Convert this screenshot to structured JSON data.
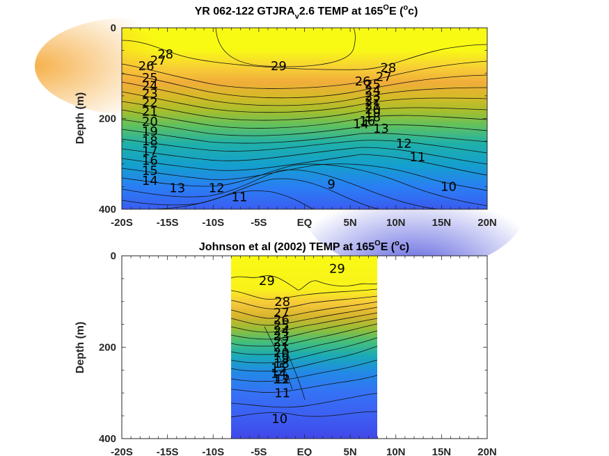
{
  "chart_data": [
    {
      "type": "heatmap",
      "subtype": "filled-contour",
      "title": {
        "pre": "YR 062-122 GTJRA",
        "sub": "v",
        "post": "2.6 TEMP at 165",
        "sup": "O",
        "post2": "E (",
        "sup2": "o",
        "post3": "c)"
      },
      "ylabel": "Depth (m)",
      "xlim": [
        -20,
        20
      ],
      "ylim": [
        0,
        400
      ],
      "y_reversed": true,
      "x_ticks": [
        "-20S",
        "-15S",
        "-10S",
        "-5S",
        "EQ",
        "5N",
        "10N",
        "15N",
        "20N"
      ],
      "y_ticks": [
        "0",
        "200",
        "400"
      ],
      "colormap": "parula",
      "data_extent_lon": [
        -20,
        20
      ],
      "contour_labels": [
        {
          "v": "29",
          "lon": -3.7,
          "d": 84
        },
        {
          "v": "28",
          "lon": -16.1,
          "d": 58
        },
        {
          "v": "27",
          "lon": -16.9,
          "d": 72
        },
        {
          "v": "26",
          "lon": -18.2,
          "d": 84
        },
        {
          "v": "25",
          "lon": -17.8,
          "d": 110
        },
        {
          "v": "24",
          "lon": -17.8,
          "d": 128
        },
        {
          "v": "23",
          "lon": -17.8,
          "d": 145
        },
        {
          "v": "22",
          "lon": -17.8,
          "d": 165
        },
        {
          "v": "21",
          "lon": -17.8,
          "d": 185
        },
        {
          "v": "20",
          "lon": -17.8,
          "d": 207
        },
        {
          "v": "19",
          "lon": -17.8,
          "d": 228
        },
        {
          "v": "18",
          "lon": -17.8,
          "d": 250
        },
        {
          "v": "17",
          "lon": -17.8,
          "d": 272
        },
        {
          "v": "16",
          "lon": -17.8,
          "d": 293
        },
        {
          "v": "15",
          "lon": -17.8,
          "d": 315
        },
        {
          "v": "14",
          "lon": -17.8,
          "d": 337
        },
        {
          "v": "13",
          "lon": -14.8,
          "d": 353
        },
        {
          "v": "12",
          "lon": -10.5,
          "d": 353
        },
        {
          "v": "11",
          "lon": -8.0,
          "d": 373
        },
        {
          "v": "9",
          "lon": 2.5,
          "d": 345
        },
        {
          "v": "28",
          "lon": 8.3,
          "d": 88
        },
        {
          "v": "27",
          "lon": 7.8,
          "d": 108
        },
        {
          "v": "26",
          "lon": 5.5,
          "d": 118
        },
        {
          "v": "25",
          "lon": 6.6,
          "d": 125
        },
        {
          "v": "24",
          "lon": 6.6,
          "d": 138
        },
        {
          "v": "23",
          "lon": 6.6,
          "d": 150
        },
        {
          "v": "22",
          "lon": 6.6,
          "d": 160
        },
        {
          "v": "21",
          "lon": 6.6,
          "d": 170
        },
        {
          "v": "20",
          "lon": 6.6,
          "d": 180
        },
        {
          "v": "19",
          "lon": 6.6,
          "d": 188
        },
        {
          "v": "18",
          "lon": 6.6,
          "d": 197
        },
        {
          "v": "16",
          "lon": 6.0,
          "d": 205
        },
        {
          "v": "14",
          "lon": 5.3,
          "d": 212
        },
        {
          "v": "13",
          "lon": 7.5,
          "d": 222
        },
        {
          "v": "12",
          "lon": 10.0,
          "d": 255
        },
        {
          "v": "11",
          "lon": 11.5,
          "d": 285
        },
        {
          "v": "10",
          "lon": 14.9,
          "d": 350
        }
      ]
    },
    {
      "type": "heatmap",
      "subtype": "filled-contour",
      "title": {
        "pre": "Johnson et al (2002) TEMP at 165",
        "sub": "",
        "post": "",
        "sup": "O",
        "post2": "E (",
        "sup2": "o",
        "post3": "c)"
      },
      "ylabel": "Depth (m)",
      "xlim": [
        -20,
        20
      ],
      "ylim": [
        0,
        400
      ],
      "y_reversed": true,
      "x_ticks": [
        "-20S",
        "-15S",
        "-10S",
        "-5S",
        "EQ",
        "5N",
        "10N",
        "15N",
        "20N"
      ],
      "y_ticks": [
        "0",
        "200",
        "400"
      ],
      "colormap": "parula",
      "data_extent_lon": [
        -8,
        8
      ],
      "contour_labels": [
        {
          "v": "29",
          "lon": -5.0,
          "d": 55
        },
        {
          "v": "29",
          "lon": 2.7,
          "d": 28
        },
        {
          "v": "28",
          "lon": -3.3,
          "d": 100
        },
        {
          "v": "27",
          "lon": -3.4,
          "d": 125
        },
        {
          "v": "26",
          "lon": -3.4,
          "d": 140
        },
        {
          "v": "25",
          "lon": -3.4,
          "d": 152
        },
        {
          "v": "24",
          "lon": -3.4,
          "d": 164
        },
        {
          "v": "23",
          "lon": -3.4,
          "d": 176
        },
        {
          "v": "22",
          "lon": -3.4,
          "d": 188
        },
        {
          "v": "21",
          "lon": -3.4,
          "d": 200
        },
        {
          "v": "20",
          "lon": -3.4,
          "d": 212
        },
        {
          "v": "19",
          "lon": -3.4,
          "d": 224
        },
        {
          "v": "18",
          "lon": -3.4,
          "d": 236
        },
        {
          "v": "15",
          "lon": -3.7,
          "d": 246
        },
        {
          "v": "14",
          "lon": -3.7,
          "d": 258
        },
        {
          "v": "13",
          "lon": -3.5,
          "d": 270
        },
        {
          "v": "12",
          "lon": -3.3,
          "d": 270
        },
        {
          "v": "11",
          "lon": -3.3,
          "d": 300
        },
        {
          "v": "10",
          "lon": -3.6,
          "d": 357
        }
      ]
    }
  ]
}
